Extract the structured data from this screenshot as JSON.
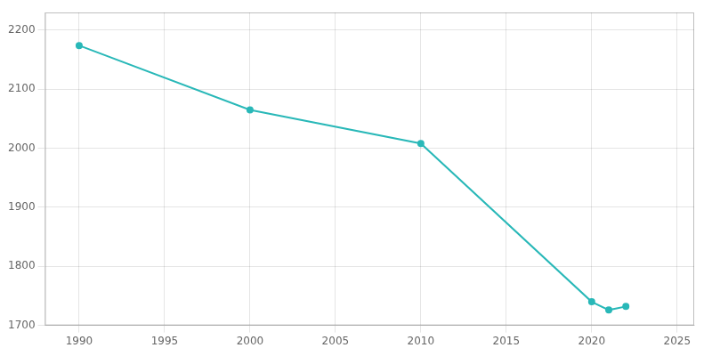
{
  "chart_data": {
    "type": "line",
    "x": [
      1990,
      2000,
      2010,
      2020,
      2021,
      2022
    ],
    "values": [
      2174,
      2065,
      2008,
      1740,
      1726,
      1732
    ],
    "color": "#29b8b8",
    "marker": "circle",
    "xlim": [
      1988,
      2026
    ],
    "xticks": [
      1990,
      1995,
      2000,
      2005,
      2010,
      2015,
      2020,
      2025
    ],
    "ylim": [
      1700,
      2230
    ],
    "yticks": [
      1700,
      1800,
      1900,
      2000,
      2100,
      2200
    ],
    "grid": true
  }
}
